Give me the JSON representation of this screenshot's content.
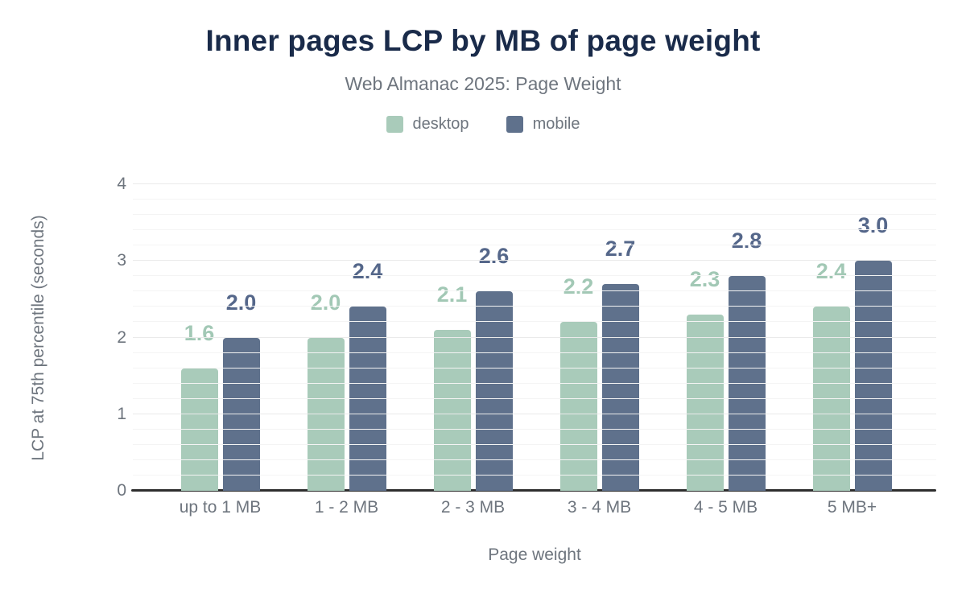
{
  "header": {
    "title": "Inner pages LCP by MB of page weight",
    "subtitle": "Web Almanac 2025: Page Weight"
  },
  "legend": {
    "items": [
      {
        "label": "desktop",
        "color": "#a9cbba"
      },
      {
        "label": "mobile",
        "color": "#5f718c"
      }
    ]
  },
  "chart_data": {
    "type": "bar",
    "title": "Inner pages LCP by MB of page weight",
    "subtitle": "Web Almanac 2025: Page Weight",
    "categories": [
      "up to 1 MB",
      "1 - 2 MB",
      "2 - 3 MB",
      "3 - 4 MB",
      "4 - 5 MB",
      "5 MB+"
    ],
    "series": [
      {
        "name": "desktop",
        "color": "#a9cbba",
        "label_color": "#a2c8b5",
        "values": [
          1.6,
          2.0,
          2.1,
          2.2,
          2.3,
          2.4
        ]
      },
      {
        "name": "mobile",
        "color": "#5f718c",
        "label_color": "#55678a",
        "values": [
          2.0,
          2.4,
          2.6,
          2.7,
          2.8,
          3.0
        ]
      }
    ],
    "xlabel": "Page weight",
    "ylabel": "LCP at 75th percentile (seconds)",
    "ylim": [
      0,
      4
    ],
    "yticks": [
      0,
      1,
      2,
      3,
      4
    ],
    "y_minor_step": 0.2,
    "grid": true,
    "legend_position": "top",
    "data_labels": true,
    "value_decimals": 1
  },
  "colors": {
    "title": "#1a2b4a",
    "muted_text": "#6e757e",
    "grid_major": "#eaeaea",
    "grid_minor": "#f4f4f4",
    "axis_line": "#2e2e2e",
    "background": "#ffffff"
  }
}
